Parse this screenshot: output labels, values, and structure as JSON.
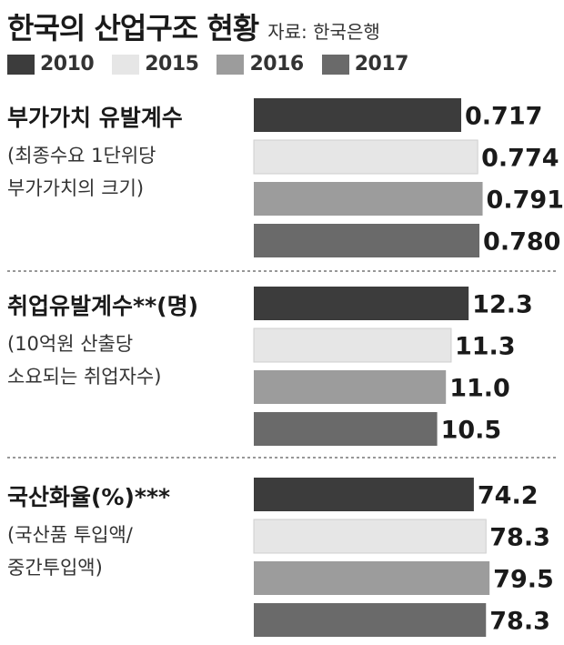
{
  "header": {
    "title": "한국의 산업구조 현황",
    "source": "자료: 한국은행"
  },
  "legend": [
    "2010",
    "2015",
    "2016",
    "2017"
  ],
  "colors": {
    "2010": "#3c3c3c",
    "2015": "#e6e6e6",
    "2016": "#9c9c9c",
    "2017": "#6a6a6a"
  },
  "chart_data": {
    "type": "bar",
    "orientation": "horizontal",
    "series_names": [
      "2010",
      "2015",
      "2016",
      "2017"
    ],
    "panels": [
      {
        "title": "부가가치 유발계수",
        "subtitle_lines": [
          "(최종수요 1단위당",
          " 부가가치의 크기)"
        ],
        "values": [
          0.717,
          0.774,
          0.791,
          0.78
        ],
        "labels": [
          "0.717",
          "0.774",
          "0.791",
          "0.780"
        ]
      },
      {
        "title": "취업유발계수**(명)",
        "subtitle_lines": [
          "(10억원 산출당",
          " 소요되는 취업자수)"
        ],
        "values": [
          12.3,
          11.3,
          11.0,
          10.5
        ],
        "labels": [
          "12.3",
          "11.3",
          "11.0",
          "10.5"
        ]
      },
      {
        "title": "국산화율(%)***",
        "subtitle_lines": [
          "(국산품 투입액/",
          "중간투입액)"
        ],
        "values": [
          74.2,
          78.3,
          79.5,
          78.3
        ],
        "labels": [
          "74.2",
          "78.3",
          "79.5",
          "78.3"
        ]
      }
    ]
  }
}
